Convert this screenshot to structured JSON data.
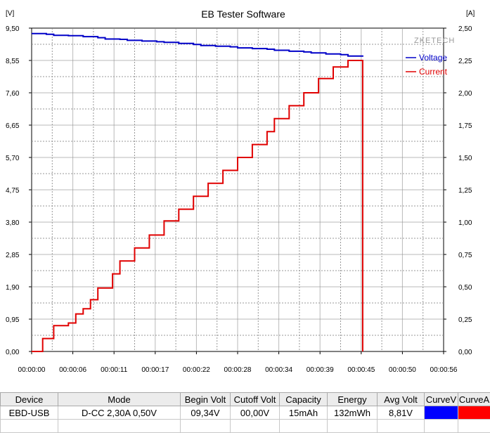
{
  "window": {
    "title": "EB Tester Software"
  },
  "chart_data": {
    "type": "line",
    "title": "EB Tester Software",
    "watermark": "ZKETECH",
    "y_left": {
      "unit_label": "[V]",
      "range": [
        0,
        9.5
      ],
      "ticks": [
        "0,00",
        "0,95",
        "1,90",
        "2,85",
        "3,80",
        "4,75",
        "5,70",
        "6,65",
        "7,60",
        "8,55",
        "9,50"
      ]
    },
    "y_right": {
      "unit_label": "[A]",
      "range": [
        0,
        2.5
      ],
      "ticks": [
        "0,00",
        "0,25",
        "0,50",
        "0,75",
        "1,00",
        "1,25",
        "1,50",
        "1,75",
        "2,00",
        "2,25",
        "2,50"
      ]
    },
    "x_axis": {
      "range_seconds": [
        0,
        56
      ],
      "ticks": [
        "00:00:00",
        "00:00:06",
        "00:00:11",
        "00:00:17",
        "00:00:22",
        "00:00:28",
        "00:00:34",
        "00:00:39",
        "00:00:45",
        "00:00:50",
        "00:00:56"
      ]
    },
    "legend": {
      "placement": "top-right"
    },
    "grid": true,
    "series": [
      {
        "name": "Voltage",
        "color": "#0000c8",
        "axis": "left",
        "step": true,
        "x": [
          0,
          2,
          3,
          5,
          7,
          9,
          10,
          12,
          13,
          15,
          17,
          18,
          20,
          22,
          23,
          25,
          27,
          28,
          30,
          32,
          33,
          35,
          37,
          38,
          40,
          42,
          43,
          45
        ],
        "y": [
          9.34,
          9.32,
          9.29,
          9.28,
          9.25,
          9.22,
          9.18,
          9.17,
          9.14,
          9.12,
          9.1,
          9.08,
          9.05,
          9.02,
          8.99,
          8.97,
          8.95,
          8.92,
          8.9,
          8.88,
          8.85,
          8.82,
          8.8,
          8.77,
          8.74,
          8.72,
          8.68,
          8.66
        ]
      },
      {
        "name": "Current",
        "color": "#e00000",
        "axis": "right",
        "step": true,
        "x": [
          0,
          1.5,
          3,
          5,
          6,
          7,
          8,
          9,
          11,
          12,
          14,
          16,
          18,
          20,
          22,
          24,
          26,
          28,
          30,
          32,
          33,
          35,
          37,
          39,
          41,
          43,
          44,
          45,
          45
        ],
        "y": [
          0,
          0.1,
          0.2,
          0.22,
          0.29,
          0.33,
          0.4,
          0.49,
          0.6,
          0.7,
          0.8,
          0.9,
          1.01,
          1.1,
          1.2,
          1.3,
          1.4,
          1.5,
          1.6,
          1.7,
          1.8,
          1.9,
          2.0,
          2.11,
          2.2,
          2.25,
          2.25,
          2.25,
          0
        ]
      }
    ]
  },
  "table": {
    "columns": [
      "Device",
      "Mode",
      "Begin Volt",
      "Cutoff Volt",
      "Capacity",
      "Energy",
      "Avg Volt",
      "CurveV",
      "CurveA"
    ],
    "rows": [
      {
        "device": "EBD-USB",
        "mode": "D-CC  2,30A  0,50V",
        "begin_volt": "09,34V",
        "cutoff_volt": "00,00V",
        "capacity": "15mAh",
        "energy": "132mWh",
        "avg_volt": "8,81V",
        "curve_v_color": "#0000ff",
        "curve_a_color": "#ff0000"
      }
    ]
  }
}
